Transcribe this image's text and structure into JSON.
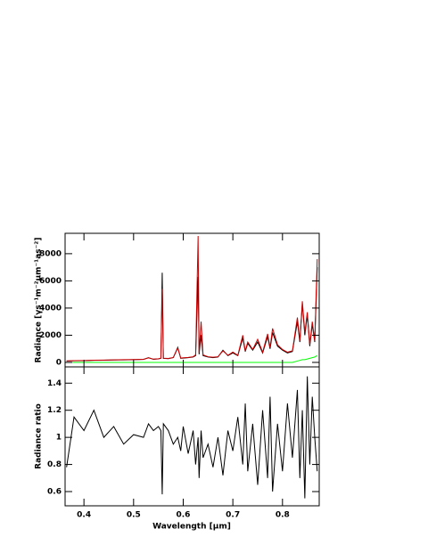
{
  "chart_data": [
    {
      "type": "line",
      "y_label": "Radiance [γs⁻¹m⁻²μm⁻¹as⁻²]",
      "x": [
        0.365,
        0.38,
        0.4,
        0.42,
        0.44,
        0.46,
        0.48,
        0.5,
        0.52,
        0.53,
        0.54,
        0.55,
        0.555,
        0.5577,
        0.56,
        0.57,
        0.58,
        0.589,
        0.595,
        0.6,
        0.61,
        0.62,
        0.625,
        0.63,
        0.632,
        0.636,
        0.64,
        0.65,
        0.66,
        0.67,
        0.68,
        0.69,
        0.7,
        0.71,
        0.72,
        0.725,
        0.73,
        0.74,
        0.75,
        0.76,
        0.77,
        0.775,
        0.78,
        0.79,
        0.8,
        0.81,
        0.82,
        0.83,
        0.835,
        0.84,
        0.845,
        0.85,
        0.855,
        0.86,
        0.865,
        0.87
      ],
      "series": [
        {
          "color": "#00ff00",
          "values": [
            0,
            0,
            0,
            0,
            0,
            0,
            0,
            0,
            0,
            0,
            0,
            0,
            0,
            0,
            0,
            0,
            0,
            0,
            0,
            0,
            0,
            0,
            0,
            0,
            0,
            0,
            0,
            0,
            0,
            0,
            0,
            0,
            0,
            0,
            0,
            0,
            0,
            0,
            0,
            0,
            0,
            0,
            0,
            0,
            0,
            0,
            0,
            100,
            150,
            200,
            200,
            250,
            300,
            350,
            400,
            500
          ]
        },
        {
          "color": "#000000",
          "values": [
            100,
            120,
            130,
            150,
            160,
            180,
            190,
            200,
            220,
            350,
            230,
            260,
            300,
            6600,
            300,
            280,
            350,
            1100,
            300,
            320,
            350,
            400,
            500,
            6300,
            600,
            2000,
            500,
            400,
            350,
            400,
            900,
            500,
            700,
            500,
            1800,
            800,
            1400,
            900,
            1500,
            700,
            1900,
            1000,
            2200,
            1200,
            900,
            700,
            800,
            3000,
            1500,
            4300,
            2000,
            3500,
            1200,
            2800,
            1500,
            7000
          ]
        },
        {
          "color": "#d00000",
          "values": [
            110,
            130,
            140,
            160,
            170,
            190,
            200,
            210,
            230,
            330,
            240,
            270,
            310,
            5400,
            310,
            290,
            360,
            1050,
            320,
            340,
            370,
            420,
            550,
            9300,
            700,
            3000,
            550,
            420,
            380,
            420,
            850,
            520,
            760,
            520,
            2000,
            850,
            1500,
            950,
            1700,
            750,
            2100,
            1100,
            2500,
            1300,
            950,
            750,
            850,
            3300,
            1600,
            4500,
            2200,
            3700,
            1300,
            3000,
            1600,
            7600
          ]
        }
      ],
      "xlim": [
        0.362,
        0.874
      ],
      "ylim": [
        -330,
        9500
      ],
      "xticks": [
        0.4,
        0.5,
        0.6,
        0.7,
        0.8
      ],
      "yticks": [
        0,
        2000,
        4000,
        6000,
        8000
      ]
    },
    {
      "type": "line",
      "x_label": "Wavelength [μm]",
      "y_label": "Radiance ratio",
      "x": [
        0.365,
        0.38,
        0.4,
        0.42,
        0.44,
        0.46,
        0.48,
        0.5,
        0.52,
        0.53,
        0.54,
        0.55,
        0.555,
        0.5577,
        0.56,
        0.57,
        0.58,
        0.589,
        0.595,
        0.6,
        0.61,
        0.62,
        0.625,
        0.63,
        0.632,
        0.636,
        0.64,
        0.65,
        0.66,
        0.67,
        0.68,
        0.69,
        0.7,
        0.71,
        0.72,
        0.725,
        0.73,
        0.74,
        0.75,
        0.76,
        0.77,
        0.775,
        0.78,
        0.79,
        0.8,
        0.81,
        0.82,
        0.83,
        0.835,
        0.84,
        0.845,
        0.85,
        0.855,
        0.86,
        0.865,
        0.87
      ],
      "series": [
        {
          "color": "#000000",
          "values": [
            0.78,
            1.15,
            1.05,
            1.2,
            1.0,
            1.08,
            0.95,
            1.02,
            1.0,
            1.1,
            1.05,
            1.08,
            1.05,
            0.58,
            1.1,
            1.05,
            0.95,
            1.0,
            0.9,
            1.08,
            0.88,
            1.05,
            0.8,
            1.0,
            0.7,
            1.05,
            0.85,
            0.95,
            0.78,
            1.0,
            0.72,
            1.05,
            0.9,
            1.15,
            0.8,
            1.25,
            0.75,
            1.1,
            0.65,
            1.2,
            0.7,
            1.3,
            0.6,
            1.1,
            0.75,
            1.25,
            0.85,
            1.35,
            0.7,
            1.2,
            0.55,
            1.45,
            0.8,
            1.3,
            1.0,
            0.75
          ]
        }
      ],
      "xlim": [
        0.362,
        0.874
      ],
      "ylim": [
        0.495,
        1.52
      ],
      "xticks": [
        0.4,
        0.5,
        0.6,
        0.7,
        0.8
      ],
      "yticks": [
        0.6,
        0.8,
        1,
        1.2,
        1.4
      ]
    }
  ]
}
